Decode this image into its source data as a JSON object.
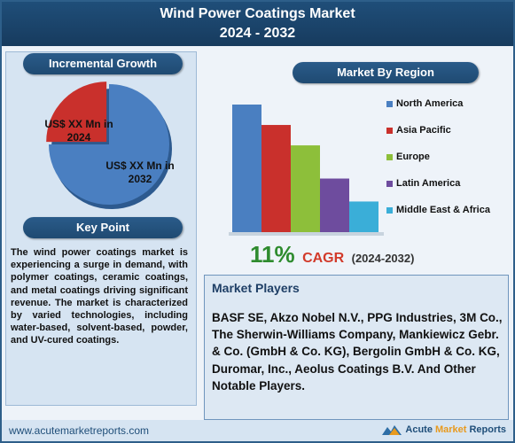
{
  "header": {
    "title_line1": "Wind Power Coatings Market",
    "title_line2": "2024 - 2032"
  },
  "incremental_growth": {
    "heading": "Incremental Growth",
    "label_2024": "US$ XX Mn in 2024",
    "label_2032": "US$ XX Mn in 2032"
  },
  "key_point": {
    "heading": "Key Point",
    "text": "The wind power coatings market is experiencing a surge in demand, with polymer coatings, ceramic coatings, and metal coatings driving significant revenue. The market is characterized by varied technologies, including water-based, solvent-based, powder, and UV-cured coatings."
  },
  "market_by_region": {
    "heading": "Market By Region"
  },
  "cagr": {
    "value": "11%",
    "label": "CAGR",
    "period": "(2024-2032)"
  },
  "market_players": {
    "heading": "Market Players",
    "text": "BASF SE, Akzo Nobel N.V., PPG Industries, 3M Co., The Sherwin-Williams Company, Mankiewicz Gebr. & Co. (GmbH & Co. KG), Bergolin GmbH & Co. KG, Duromar, Inc., Aeolus Coatings B.V. And Other Notable Players."
  },
  "footer": {
    "url": "www.acutemarketreports.com",
    "brand_part1": "Acute",
    "brand_part2": "Market",
    "brand_part3": "Reports"
  },
  "colors": {
    "pie_large": "#4a7fc1",
    "pie_small": "#c9302c"
  },
  "chart_data": [
    {
      "type": "pie",
      "labels": [
        "US$ XX Mn in 2024",
        "US$ XX Mn in 2032"
      ],
      "values": [
        25,
        75
      ],
      "colors": [
        "#c9302c",
        "#4a7fc1"
      ]
    },
    {
      "type": "bar",
      "categories": [
        "North America",
        "Asia Pacific",
        "Europe",
        "Latin America",
        "Middle East & Africa"
      ],
      "values": [
        100,
        84,
        68,
        42,
        24
      ],
      "colors": [
        "#4a7fc1",
        "#c9302c",
        "#8dbf3a",
        "#6e4c9e",
        "#3aaed8"
      ],
      "title": "Market By Region",
      "legend": "right"
    }
  ]
}
